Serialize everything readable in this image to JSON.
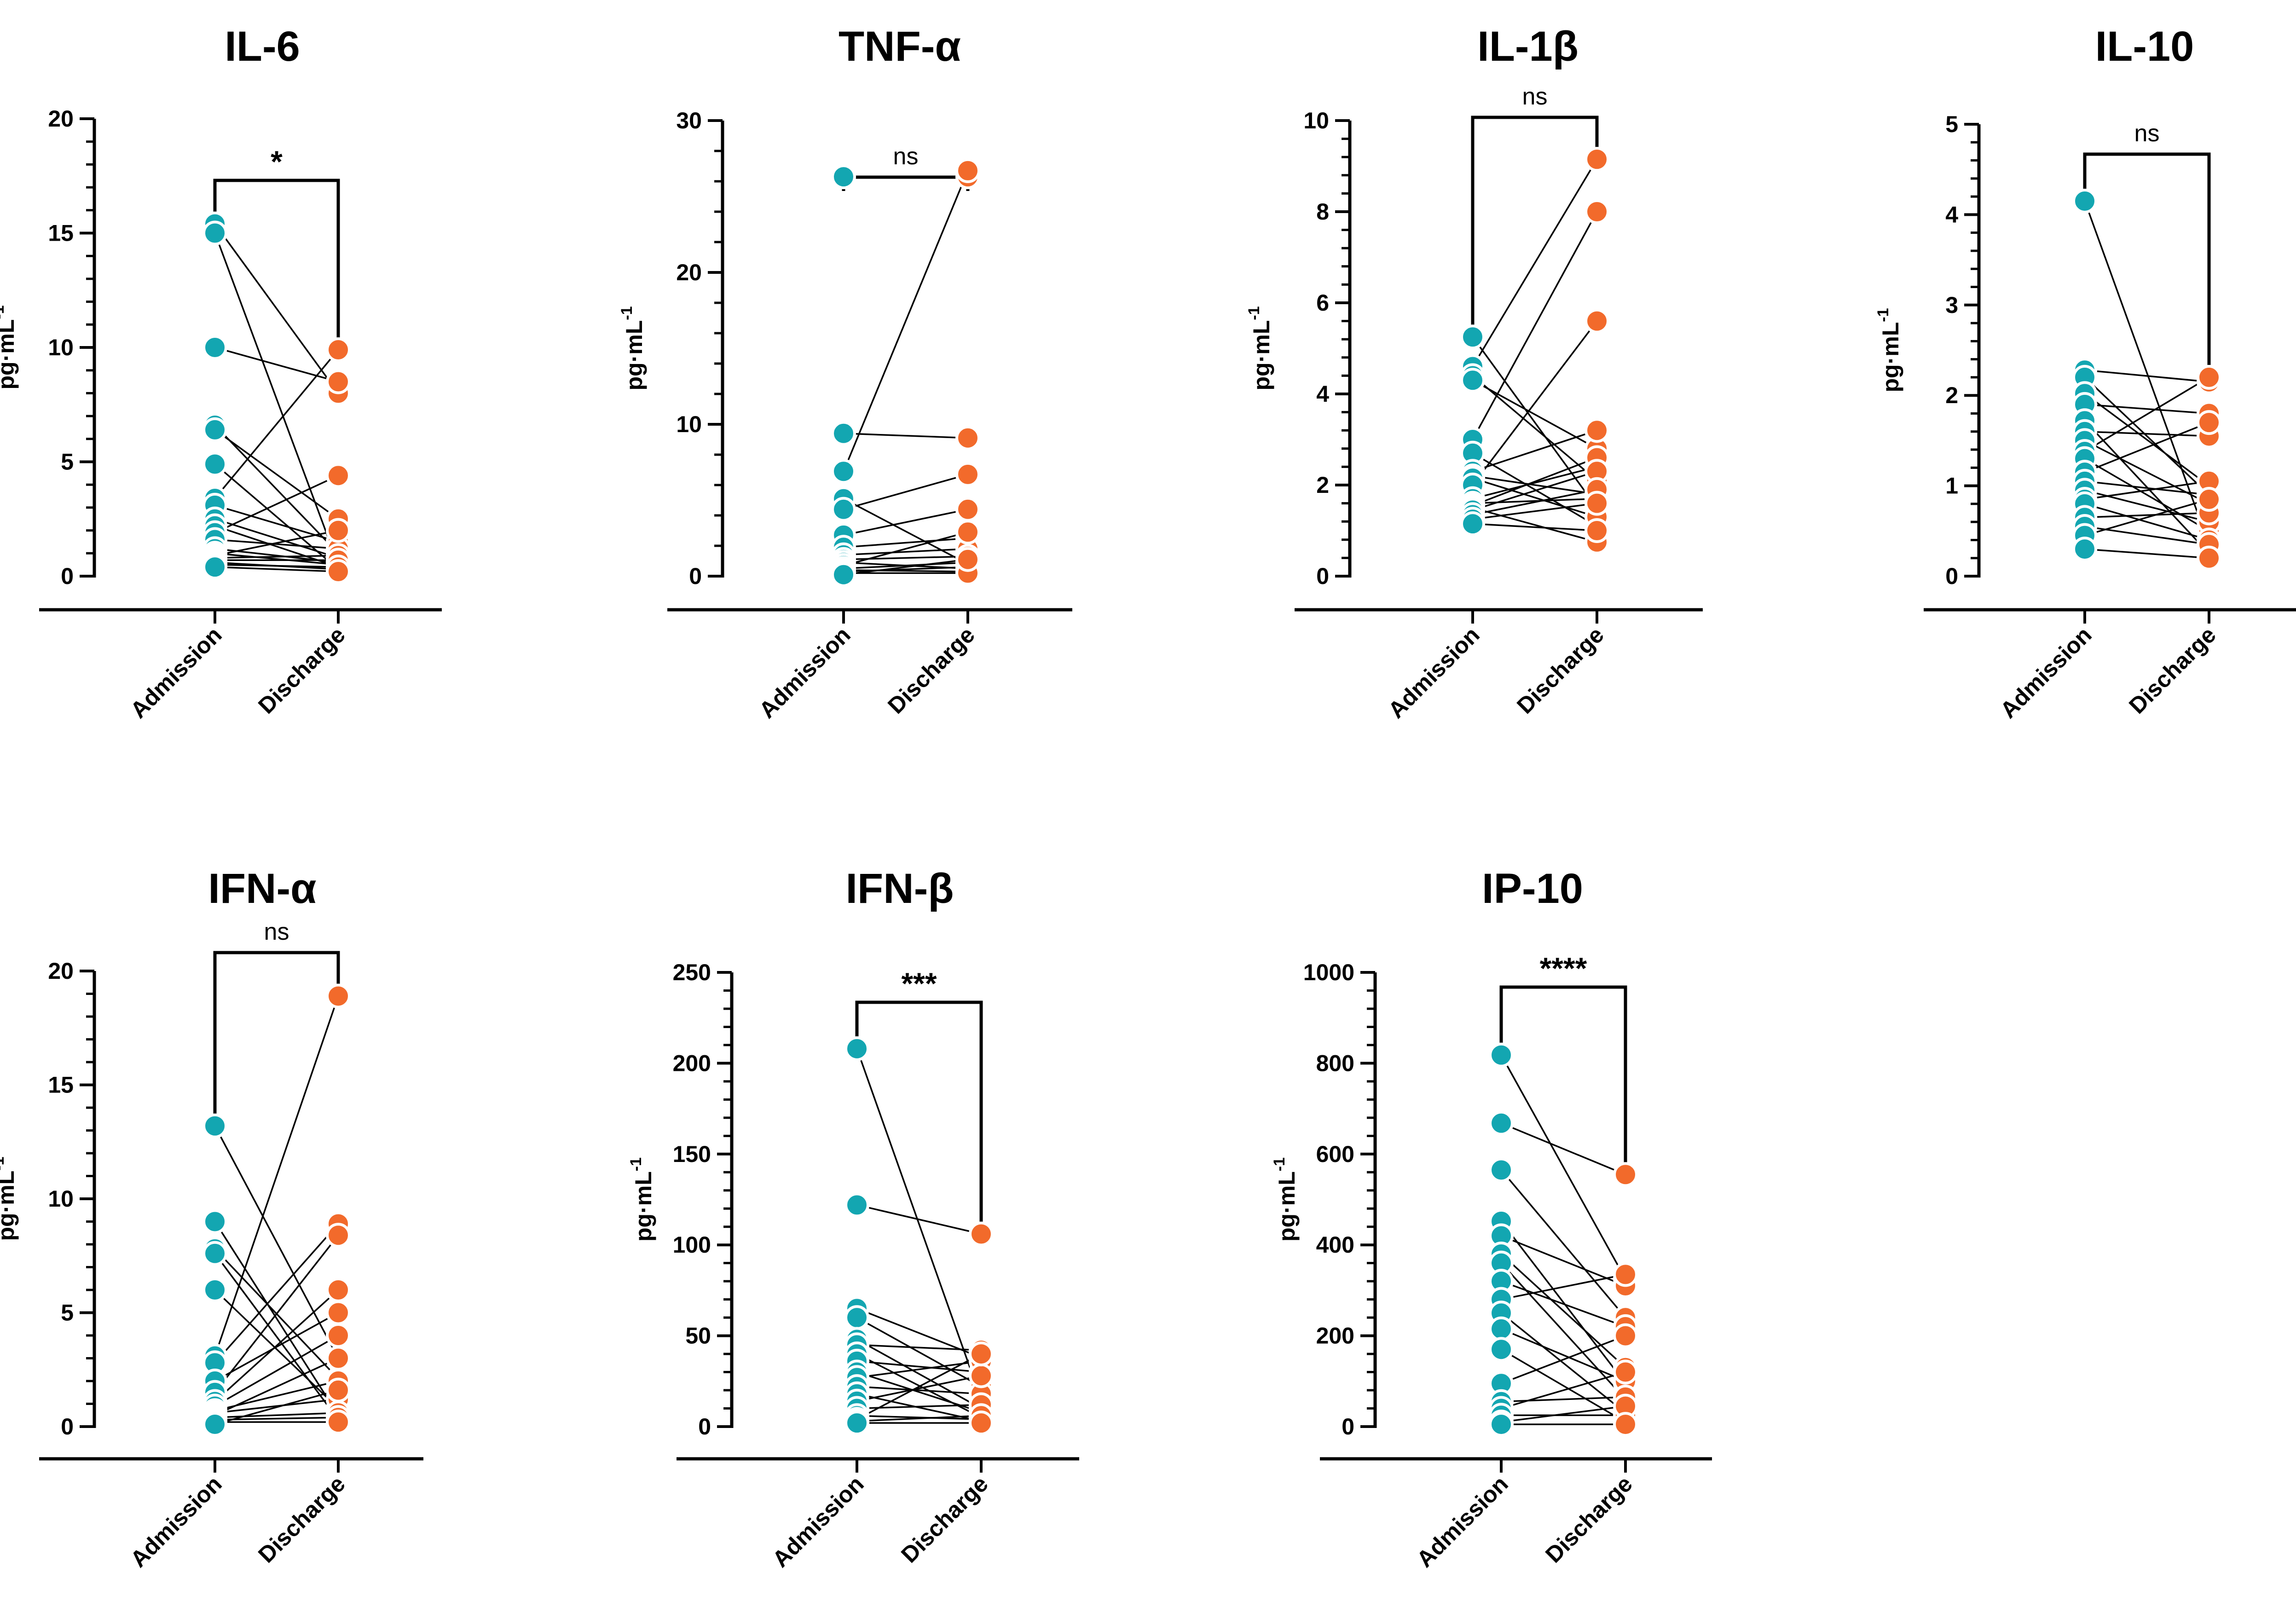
{
  "colors": {
    "admission": "#13A6B1",
    "discharge": "#F26A2B"
  },
  "ylabel": "pg·mL",
  "ylabel_sup": "-1",
  "chart_data": [
    {
      "type": "scatter",
      "title": "IL-6",
      "categories": [
        "Admission",
        "Discharge"
      ],
      "ylabel": "pg·mL-1",
      "ylim": [
        0,
        20
      ],
      "yticks": [
        0,
        5,
        10,
        15,
        20
      ],
      "significance": "*",
      "pairs": [
        [
          15.4,
          8.0
        ],
        [
          15.0,
          0.5
        ],
        [
          10.0,
          8.5
        ],
        [
          6.6,
          1.0
        ],
        [
          6.4,
          2.5
        ],
        [
          4.9,
          0.3
        ],
        [
          3.4,
          9.9
        ],
        [
          3.1,
          1.5
        ],
        [
          2.5,
          0.8
        ],
        [
          2.2,
          0.4
        ],
        [
          1.9,
          4.4
        ],
        [
          1.6,
          1.2
        ],
        [
          1.2,
          0.6
        ],
        [
          1.0,
          0.5
        ],
        [
          0.9,
          2.0
        ],
        [
          0.8,
          0.9
        ],
        [
          0.7,
          0.7
        ],
        [
          0.6,
          0.3
        ],
        [
          0.5,
          0.4
        ],
        [
          0.4,
          0.2
        ]
      ]
    },
    {
      "type": "scatter",
      "title": "TNF-α",
      "categories": [
        "Admission",
        "Discharge"
      ],
      "ylabel": "pg·mL-1",
      "ylim": [
        0,
        30
      ],
      "yticks": [
        0,
        10,
        20,
        30
      ],
      "significance": "ns",
      "pairs": [
        [
          26.3,
          26.3
        ],
        [
          9.4,
          9.1
        ],
        [
          6.9,
          26.7
        ],
        [
          5.1,
          0.8
        ],
        [
          4.4,
          6.7
        ],
        [
          2.7,
          4.4
        ],
        [
          1.9,
          2.5
        ],
        [
          1.4,
          1.8
        ],
        [
          1.1,
          1.3
        ],
        [
          0.9,
          0.5
        ],
        [
          0.7,
          2.9
        ],
        [
          0.5,
          0.9
        ],
        [
          0.4,
          0.3
        ],
        [
          0.3,
          0.6
        ],
        [
          0.2,
          0.2
        ],
        [
          0.1,
          1.1
        ]
      ]
    },
    {
      "type": "scatter",
      "title": "IL-1β",
      "categories": [
        "Admission",
        "Discharge"
      ],
      "ylabel": "pg·mL-1",
      "ylim": [
        0,
        10
      ],
      "yticks": [
        0,
        2,
        4,
        6,
        8,
        10
      ],
      "significance": "ns",
      "pairs": [
        [
          5.25,
          1.5
        ],
        [
          4.6,
          9.15
        ],
        [
          4.4,
          2.1
        ],
        [
          4.3,
          2.8
        ],
        [
          3.0,
          8.0
        ],
        [
          2.7,
          1.1
        ],
        [
          2.3,
          3.2
        ],
        [
          2.2,
          1.8
        ],
        [
          2.15,
          1.3
        ],
        [
          2.0,
          5.6
        ],
        [
          1.7,
          2.4
        ],
        [
          1.6,
          1.7
        ],
        [
          1.55,
          2.6
        ],
        [
          1.5,
          0.75
        ],
        [
          1.45,
          2.3
        ],
        [
          1.35,
          1.9
        ],
        [
          1.25,
          1.6
        ],
        [
          1.15,
          1.0
        ]
      ]
    },
    {
      "type": "scatter",
      "title": "IL-10",
      "categories": [
        "Admission",
        "Discharge"
      ],
      "ylabel": "pg·mL-1",
      "ylim": [
        0,
        5
      ],
      "yticks": [
        0,
        1,
        2,
        3,
        4,
        5
      ],
      "significance": "ns",
      "pairs": [
        [
          4.15,
          0.35
        ],
        [
          2.28,
          2.15
        ],
        [
          2.2,
          0.9
        ],
        [
          2.02,
          1.0
        ],
        [
          1.9,
          1.8
        ],
        [
          1.72,
          0.25
        ],
        [
          1.6,
          1.55
        ],
        [
          1.5,
          0.8
        ],
        [
          1.38,
          2.2
        ],
        [
          1.3,
          0.5
        ],
        [
          1.15,
          1.7
        ],
        [
          1.05,
          0.9
        ],
        [
          0.95,
          0.6
        ],
        [
          0.85,
          1.05
        ],
        [
          0.8,
          0.4
        ],
        [
          0.65,
          0.7
        ],
        [
          0.55,
          0.35
        ],
        [
          0.45,
          0.85
        ],
        [
          0.3,
          0.2
        ]
      ]
    },
    {
      "type": "scatter",
      "title": "IFN-α",
      "categories": [
        "Admission",
        "Discharge"
      ],
      "ylabel": "pg·mL-1",
      "ylim": [
        0,
        20
      ],
      "yticks": [
        0,
        5,
        10,
        15,
        20
      ],
      "significance": "ns",
      "pairs": [
        [
          13.2,
          3.0
        ],
        [
          9.0,
          0.5
        ],
        [
          7.8,
          2.1
        ],
        [
          7.6,
          0.3
        ],
        [
          6.0,
          0.8
        ],
        [
          3.1,
          18.9
        ],
        [
          2.8,
          8.9
        ],
        [
          2.0,
          5.0
        ],
        [
          1.5,
          8.4
        ],
        [
          1.1,
          6.0
        ],
        [
          0.9,
          4.0
        ],
        [
          0.7,
          2.0
        ],
        [
          0.6,
          1.2
        ],
        [
          0.5,
          3.0
        ],
        [
          0.4,
          0.6
        ],
        [
          0.3,
          0.4
        ],
        [
          0.2,
          0.2
        ],
        [
          0.1,
          1.6
        ]
      ]
    },
    {
      "type": "scatter",
      "title": "IFN-β",
      "categories": [
        "Admission",
        "Discharge"
      ],
      "ylabel": "pg·mL-1",
      "ylim": [
        0,
        250
      ],
      "yticks": [
        0,
        50,
        100,
        150,
        200,
        250
      ],
      "significance": "***",
      "pairs": [
        [
          208,
          15
        ],
        [
          122,
          106
        ],
        [
          65,
          38
        ],
        [
          60,
          22
        ],
        [
          48,
          10
        ],
        [
          45,
          42
        ],
        [
          40,
          5
        ],
        [
          36,
          30
        ],
        [
          30,
          8
        ],
        [
          27,
          36
        ],
        [
          22,
          18
        ],
        [
          18,
          3
        ],
        [
          14,
          28
        ],
        [
          10,
          12
        ],
        [
          6,
          4
        ],
        [
          4,
          40
        ],
        [
          3,
          6
        ],
        [
          2,
          2
        ]
      ]
    },
    {
      "type": "scatter",
      "title": "IP-10",
      "categories": [
        "Admission",
        "Discharge"
      ],
      "ylabel": "pg·mL-1",
      "ylim": [
        0,
        1000
      ],
      "yticks": [
        0,
        200,
        400,
        600,
        800,
        1000
      ],
      "significance": "****",
      "pairs": [
        [
          818,
          325
        ],
        [
          668,
          555
        ],
        [
          565,
          240
        ],
        [
          452,
          95
        ],
        [
          420,
          310
        ],
        [
          380,
          130
        ],
        [
          360,
          60
        ],
        [
          320,
          220
        ],
        [
          280,
          335
        ],
        [
          250,
          30
        ],
        [
          215,
          100
        ],
        [
          170,
          10
        ],
        [
          95,
          200
        ],
        [
          55,
          65
        ],
        [
          40,
          120
        ],
        [
          25,
          25
        ],
        [
          10,
          45
        ],
        [
          5,
          5
        ]
      ]
    }
  ]
}
